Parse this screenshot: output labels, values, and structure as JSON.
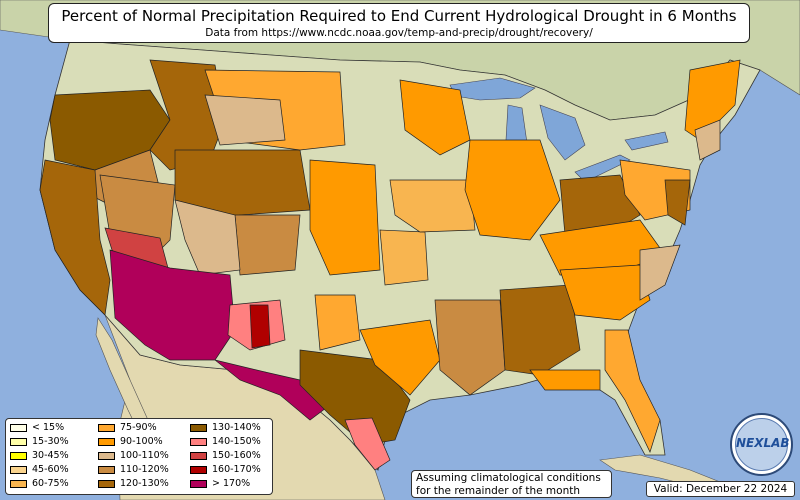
{
  "title": "Percent of Normal Precipitation Required to End Current Hydrological Drought in 6 Months",
  "subtitle": "Data from https://www.ncdc.noaa.gov/temp-and-precip/drought/recovery/",
  "legend": [
    {
      "label": "< 15%",
      "color": "#ffffe8"
    },
    {
      "label": "15-30%",
      "color": "#ffffa8"
    },
    {
      "label": "30-45%",
      "color": "#ffff00"
    },
    {
      "label": "45-60%",
      "color": "#fad48e"
    },
    {
      "label": "60-75%",
      "color": "#f8b550"
    },
    {
      "label": "75-90%",
      "color": "#ffa830"
    },
    {
      "label": "90-100%",
      "color": "#ff9a00"
    },
    {
      "label": "100-110%",
      "color": "#dcb98c"
    },
    {
      "label": "110-120%",
      "color": "#c98b42"
    },
    {
      "label": "120-130%",
      "color": "#a5660a"
    },
    {
      "label": "130-140%",
      "color": "#8b5a00"
    },
    {
      "label": "140-150%",
      "color": "#ff8080"
    },
    {
      "label": "150-160%",
      "color": "#d04242"
    },
    {
      "label": "160-170%",
      "color": "#b00000"
    },
    {
      "label": "> 170%",
      "color": "#b0005a"
    }
  ],
  "note": {
    "line1": "Assuming climatological conditions",
    "line2": "for the remainder of the month"
  },
  "valid": "Valid: December 22 2024",
  "logo": {
    "text": "NEXLAB"
  },
  "colors": {
    "ocean": "#8fb0de",
    "land": "#d9ddb8",
    "canada": "#c9d3a9",
    "mexico": "#e3d9b0",
    "lake": "#7fa6d8"
  }
}
